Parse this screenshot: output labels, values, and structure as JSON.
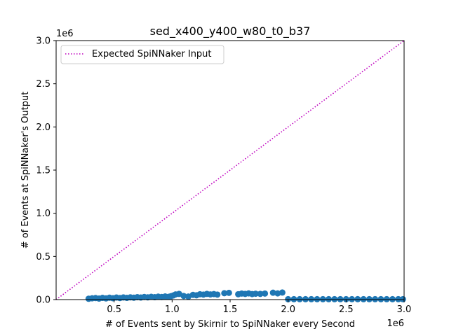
{
  "chart_data": {
    "type": "scatter",
    "title": "sed_x400_y400_w80_t0_b37",
    "xlabel": "# of Events sent by Skirnir to SpiNNaker every Second",
    "ylabel": "# of Events at SpiNNaker's Output",
    "x_offset_label": "1e6",
    "y_offset_label": "1e6",
    "xlim": [
      0,
      3000000
    ],
    "ylim": [
      0,
      3000000
    ],
    "x_ticks": [
      0.5,
      1.0,
      1.5,
      2.0,
      2.5,
      3.0
    ],
    "x_tick_labels": [
      "0.5",
      "1.0",
      "1.5",
      "2.0",
      "2.5",
      "3.0"
    ],
    "y_ticks": [
      0.0,
      0.5,
      1.0,
      1.5,
      2.0,
      2.5,
      3.0
    ],
    "y_tick_labels": [
      "0.0",
      "0.5",
      "1.0",
      "1.5",
      "2.0",
      "2.5",
      "3.0"
    ],
    "tick_scale": 1000000,
    "legend": {
      "label": "Expected SpiNNaker Input",
      "placement": "upper-left"
    },
    "reference_line": {
      "label": "Expected SpiNNaker Input",
      "x": [
        0,
        3000000
      ],
      "y": [
        0,
        3000000
      ],
      "color": "#bf00bf",
      "style": "dotted"
    },
    "series": [
      {
        "name": "measured",
        "color": "#1f77b4",
        "x": [
          280000,
          310000,
          340000,
          370000,
          400000,
          430000,
          460000,
          490000,
          520000,
          550000,
          580000,
          610000,
          640000,
          670000,
          700000,
          730000,
          760000,
          790000,
          820000,
          850000,
          880000,
          910000,
          940000,
          970000,
          990000,
          1010000,
          1030000,
          1060000,
          1100000,
          1140000,
          1180000,
          1210000,
          1240000,
          1270000,
          1300000,
          1330000,
          1360000,
          1390000,
          1450000,
          1490000,
          1570000,
          1600000,
          1630000,
          1660000,
          1690000,
          1720000,
          1760000,
          1800000,
          1870000,
          1910000,
          1950000,
          2000000,
          2050000,
          2100000,
          2150000,
          2200000,
          2250000,
          2300000,
          2350000,
          2400000,
          2450000,
          2500000,
          2550000,
          2600000,
          2650000,
          2700000,
          2750000,
          2800000,
          2850000,
          2900000,
          2950000,
          2990000
        ],
        "y": [
          10000,
          15000,
          18000,
          12000,
          20000,
          14000,
          22000,
          16000,
          24000,
          18000,
          25000,
          20000,
          26000,
          22000,
          28000,
          24000,
          30000,
          26000,
          32000,
          28000,
          34000,
          30000,
          36000,
          32000,
          40000,
          48000,
          60000,
          66000,
          42000,
          35000,
          55000,
          50000,
          62000,
          58000,
          66000,
          60000,
          64000,
          58000,
          74000,
          78000,
          62000,
          70000,
          66000,
          72000,
          64000,
          68000,
          66000,
          70000,
          80000,
          72000,
          82000,
          5000,
          5000,
          5000,
          5000,
          5000,
          5000,
          5000,
          5000,
          5000,
          5000,
          5000,
          5000,
          5000,
          5000,
          5000,
          5000,
          5000,
          5000,
          5000,
          5000,
          5000
        ]
      }
    ]
  }
}
